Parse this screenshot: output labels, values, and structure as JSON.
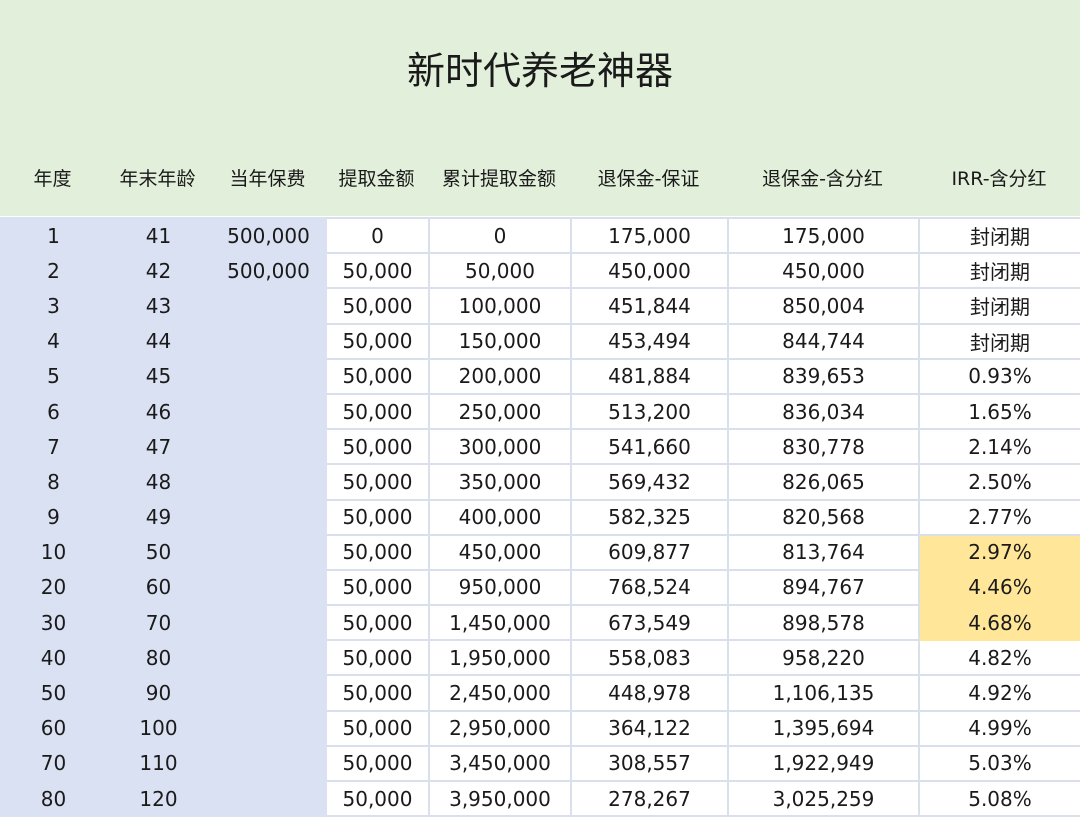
{
  "title": "新时代养老神器",
  "columns": [
    "年度",
    "年末年龄",
    "当年保费",
    "提取金额",
    "累计提取金额",
    "退保金-保证",
    "退保金-含分红",
    "IRR-含分红"
  ],
  "colors": {
    "header_bg": "#e2efda",
    "left_bg": "#d9e1f2",
    "highlight": "#ffe699"
  },
  "highlighted_irr_years": [
    "10",
    "20",
    "30"
  ],
  "rows": [
    [
      "1",
      "41",
      "500,000",
      "0",
      "0",
      "175,000",
      "175,000",
      "封闭期"
    ],
    [
      "2",
      "42",
      "500,000",
      "50,000",
      "50,000",
      "450,000",
      "450,000",
      "封闭期"
    ],
    [
      "3",
      "43",
      "",
      "50,000",
      "100,000",
      "451,844",
      "850,004",
      "封闭期"
    ],
    [
      "4",
      "44",
      "",
      "50,000",
      "150,000",
      "453,494",
      "844,744",
      "封闭期"
    ],
    [
      "5",
      "45",
      "",
      "50,000",
      "200,000",
      "481,884",
      "839,653",
      "0.93%"
    ],
    [
      "6",
      "46",
      "",
      "50,000",
      "250,000",
      "513,200",
      "836,034",
      "1.65%"
    ],
    [
      "7",
      "47",
      "",
      "50,000",
      "300,000",
      "541,660",
      "830,778",
      "2.14%"
    ],
    [
      "8",
      "48",
      "",
      "50,000",
      "350,000",
      "569,432",
      "826,065",
      "2.50%"
    ],
    [
      "9",
      "49",
      "",
      "50,000",
      "400,000",
      "582,325",
      "820,568",
      "2.77%"
    ],
    [
      "10",
      "50",
      "",
      "50,000",
      "450,000",
      "609,877",
      "813,764",
      "2.97%"
    ],
    [
      "20",
      "60",
      "",
      "50,000",
      "950,000",
      "768,524",
      "894,767",
      "4.46%"
    ],
    [
      "30",
      "70",
      "",
      "50,000",
      "1,450,000",
      "673,549",
      "898,578",
      "4.68%"
    ],
    [
      "40",
      "80",
      "",
      "50,000",
      "1,950,000",
      "558,083",
      "958,220",
      "4.82%"
    ],
    [
      "50",
      "90",
      "",
      "50,000",
      "2,450,000",
      "448,978",
      "1,106,135",
      "4.92%"
    ],
    [
      "60",
      "100",
      "",
      "50,000",
      "2,950,000",
      "364,122",
      "1,395,694",
      "4.99%"
    ],
    [
      "70",
      "110",
      "",
      "50,000",
      "3,450,000",
      "308,557",
      "1,922,949",
      "5.03%"
    ],
    [
      "80",
      "120",
      "",
      "50,000",
      "3,950,000",
      "278,267",
      "3,025,259",
      "5.08%"
    ]
  ]
}
